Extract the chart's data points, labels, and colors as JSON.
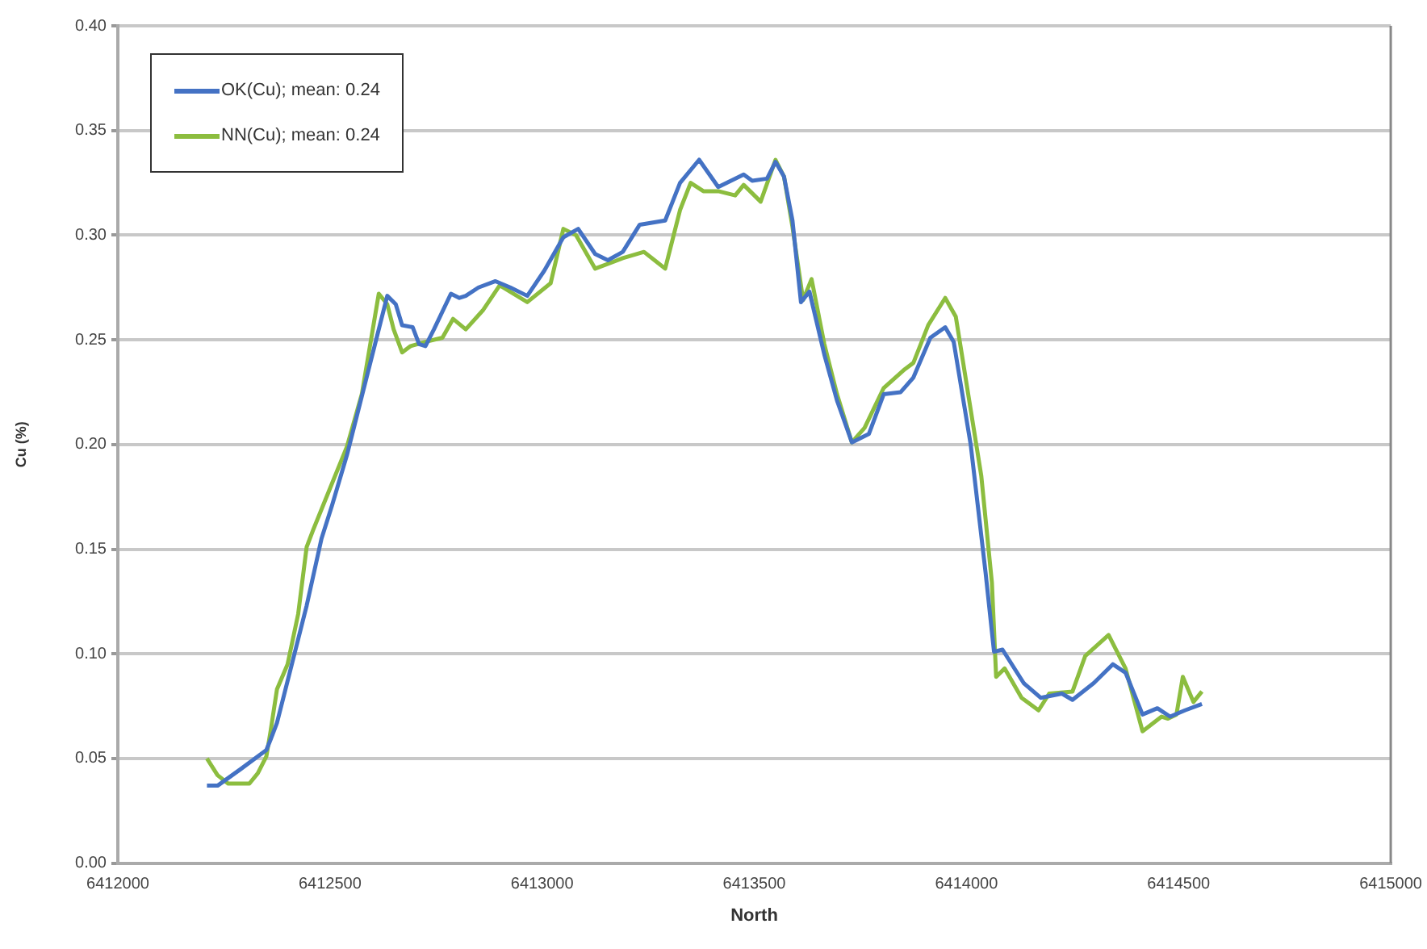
{
  "chart_data": {
    "type": "line",
    "xlabel": "North",
    "ylabel": "Cu (%)",
    "xlim": [
      6412000,
      6415000
    ],
    "xticks": [
      6412000,
      6412500,
      6413000,
      6413500,
      6414000,
      6414500,
      6415000
    ],
    "ylim": [
      0,
      0.4
    ],
    "yticks": [
      {
        "value": 0,
        "label": "0.00"
      },
      {
        "value": 0.05,
        "label": "0.05"
      },
      {
        "value": 0.1,
        "label": "0.10"
      },
      {
        "value": 0.15,
        "label": "0.15"
      },
      {
        "value": 0.2,
        "label": "0.20"
      },
      {
        "value": 0.25,
        "label": "0.25"
      },
      {
        "value": 0.3,
        "label": "0.30"
      },
      {
        "value": 0.35,
        "label": "0.35"
      },
      {
        "value": 0.4,
        "label": "0.40"
      }
    ],
    "grid": "y",
    "legend": "top left",
    "marker": "none",
    "line_style": "solid",
    "series": [
      {
        "name": "OK(Cu); mean: 0.24",
        "color": "#4472c4",
        "x": [
          6412210,
          6412235,
          6412290,
          6412350,
          6412360,
          6412375,
          6412405,
          6412445,
          6412480,
          6412505,
          6412540,
          6412575,
          6412605,
          6412635,
          6412655,
          6412670,
          6412695,
          6412710,
          6412725,
          6412745,
          6412785,
          6412805,
          6412820,
          6412850,
          6412890,
          6412925,
          6412965,
          6413005,
          6413050,
          6413085,
          6413125,
          6413155,
          6413190,
          6413230,
          6413290,
          6413325,
          6413370,
          6413415,
          6413475,
          6413495,
          6413530,
          6413550,
          6413570,
          6413590,
          6413610,
          6413630,
          6413665,
          6413695,
          6413730,
          6413770,
          6413805,
          6413845,
          6413875,
          6413915,
          6413950,
          6413970,
          6414010,
          6414045,
          6414065,
          6414085,
          6414135,
          6414175,
          6414225,
          6414250,
          6414300,
          6414345,
          6414375,
          6414415,
          6414450,
          6414480,
          6414515,
          6414555
        ],
        "values": [
          0.037,
          0.037,
          0.045,
          0.054,
          0.059,
          0.067,
          0.091,
          0.123,
          0.155,
          0.171,
          0.195,
          0.223,
          0.247,
          0.271,
          0.267,
          0.257,
          0.256,
          0.248,
          0.247,
          0.255,
          0.272,
          0.27,
          0.271,
          0.275,
          0.278,
          0.275,
          0.271,
          0.283,
          0.299,
          0.303,
          0.291,
          0.288,
          0.292,
          0.305,
          0.307,
          0.325,
          0.336,
          0.323,
          0.329,
          0.326,
          0.327,
          0.335,
          0.328,
          0.307,
          0.268,
          0.273,
          0.243,
          0.221,
          0.201,
          0.205,
          0.224,
          0.225,
          0.232,
          0.251,
          0.256,
          0.249,
          0.2,
          0.139,
          0.101,
          0.102,
          0.086,
          0.079,
          0.081,
          0.078,
          0.086,
          0.095,
          0.091,
          0.071,
          0.074,
          0.07,
          0.073,
          0.076
        ]
      },
      {
        "name": "NN(Cu); mean: 0.24",
        "color": "#8cbd3f",
        "x": [
          6412210,
          6412235,
          6412260,
          6412310,
          6412330,
          6412350,
          6412360,
          6412375,
          6412400,
          6412425,
          6412445,
          6412460,
          6412500,
          6412540,
          6412575,
          6412615,
          6412635,
          6412650,
          6412670,
          6412690,
          6412725,
          6412765,
          6412790,
          6412820,
          6412860,
          6412900,
          6412965,
          6413020,
          6413050,
          6413080,
          6413125,
          6413190,
          6413240,
          6413265,
          6413290,
          6413325,
          6413350,
          6413380,
          6413415,
          6413455,
          6413475,
          6413515,
          6413550,
          6413570,
          6413590,
          6413615,
          6413635,
          6413665,
          6413695,
          6413730,
          6413760,
          6413805,
          6413855,
          6413875,
          6413910,
          6413950,
          6413975,
          6414035,
          6414060,
          6414070,
          6414090,
          6414130,
          6414170,
          6414195,
          6414250,
          6414280,
          6414335,
          6414375,
          6414415,
          6414460,
          6414475,
          6414495,
          6414510,
          6414535,
          6414555
        ],
        "values": [
          0.05,
          0.042,
          0.038,
          0.038,
          0.043,
          0.051,
          0.063,
          0.083,
          0.095,
          0.119,
          0.151,
          0.159,
          0.179,
          0.199,
          0.224,
          0.272,
          0.267,
          0.255,
          0.244,
          0.247,
          0.249,
          0.251,
          0.26,
          0.255,
          0.264,
          0.276,
          0.268,
          0.277,
          0.303,
          0.3,
          0.284,
          0.289,
          0.292,
          0.288,
          0.284,
          0.312,
          0.325,
          0.321,
          0.321,
          0.319,
          0.324,
          0.316,
          0.336,
          0.328,
          0.304,
          0.269,
          0.279,
          0.248,
          0.224,
          0.201,
          0.208,
          0.227,
          0.236,
          0.239,
          0.257,
          0.27,
          0.261,
          0.185,
          0.134,
          0.089,
          0.093,
          0.079,
          0.073,
          0.081,
          0.082,
          0.099,
          0.109,
          0.093,
          0.063,
          0.07,
          0.069,
          0.071,
          0.089,
          0.077,
          0.082
        ]
      }
    ]
  }
}
